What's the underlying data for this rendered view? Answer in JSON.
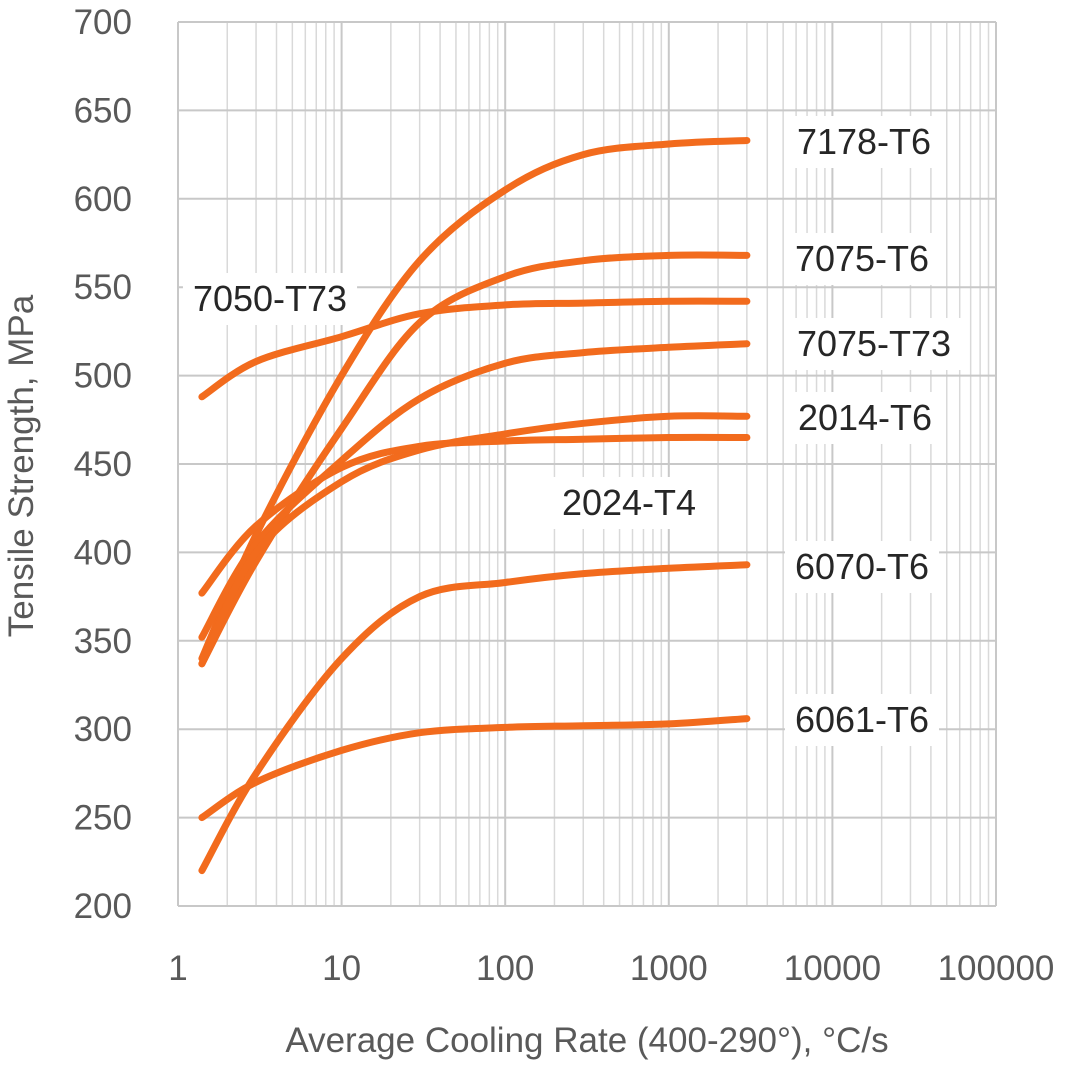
{
  "chart_data": {
    "type": "line",
    "xlabel": "Average Cooling Rate (400-290°), °C/s",
    "ylabel": "Tensile Strength, MPa",
    "x_scale": "log",
    "xlim": [
      1,
      100000
    ],
    "ylim": [
      200,
      700
    ],
    "x_ticks": [
      1,
      10,
      100,
      1000,
      10000,
      100000
    ],
    "x_tick_labels": [
      "1",
      "10",
      "100",
      "1000",
      "10000",
      "100000"
    ],
    "y_ticks": [
      200,
      250,
      300,
      350,
      400,
      450,
      500,
      550,
      600,
      650,
      700
    ],
    "grid": "major and minor",
    "line_color": "#F26B1D",
    "series": [
      {
        "name": "7178-T6",
        "x": [
          1.4,
          3,
          10,
          30,
          100,
          300,
          1000,
          3000
        ],
        "y": [
          340,
          410,
          500,
          565,
          605,
          625,
          631,
          633
        ]
      },
      {
        "name": "7075-T6",
        "x": [
          1.4,
          3,
          10,
          30,
          100,
          300,
          1000,
          3000
        ],
        "y": [
          337,
          395,
          470,
          530,
          556,
          565,
          568,
          568
        ]
      },
      {
        "name": "7050-T73",
        "x": [
          1.4,
          3,
          10,
          30,
          100,
          300,
          1000,
          3000
        ],
        "y": [
          488,
          508,
          522,
          535,
          540,
          541,
          542,
          542
        ]
      },
      {
        "name": "7075-T73",
        "x": [
          1.4,
          3,
          10,
          30,
          100,
          300,
          1000,
          3000
        ],
        "y": [
          352,
          405,
          452,
          487,
          507,
          513,
          516,
          518
        ]
      },
      {
        "name": "2014-T6",
        "x": [
          1.4,
          3,
          10,
          30,
          100,
          300,
          1000,
          3000
        ],
        "y": [
          337,
          400,
          440,
          458,
          467,
          473,
          477,
          477
        ]
      },
      {
        "name": "2024-T4",
        "x": [
          1.4,
          3,
          10,
          30,
          100,
          300,
          1000,
          3000
        ],
        "y": [
          377,
          415,
          448,
          460,
          463,
          464,
          465,
          465
        ]
      },
      {
        "name": "6070-T6",
        "x": [
          1.4,
          3,
          10,
          30,
          100,
          300,
          1000,
          3000
        ],
        "y": [
          220,
          275,
          340,
          375,
          383,
          388,
          391,
          393
        ]
      },
      {
        "name": "6061-T6",
        "x": [
          1.4,
          3,
          10,
          30,
          100,
          300,
          1000,
          3000
        ],
        "y": [
          250,
          270,
          288,
          298,
          301,
          302,
          303,
          306
        ]
      }
    ]
  }
}
